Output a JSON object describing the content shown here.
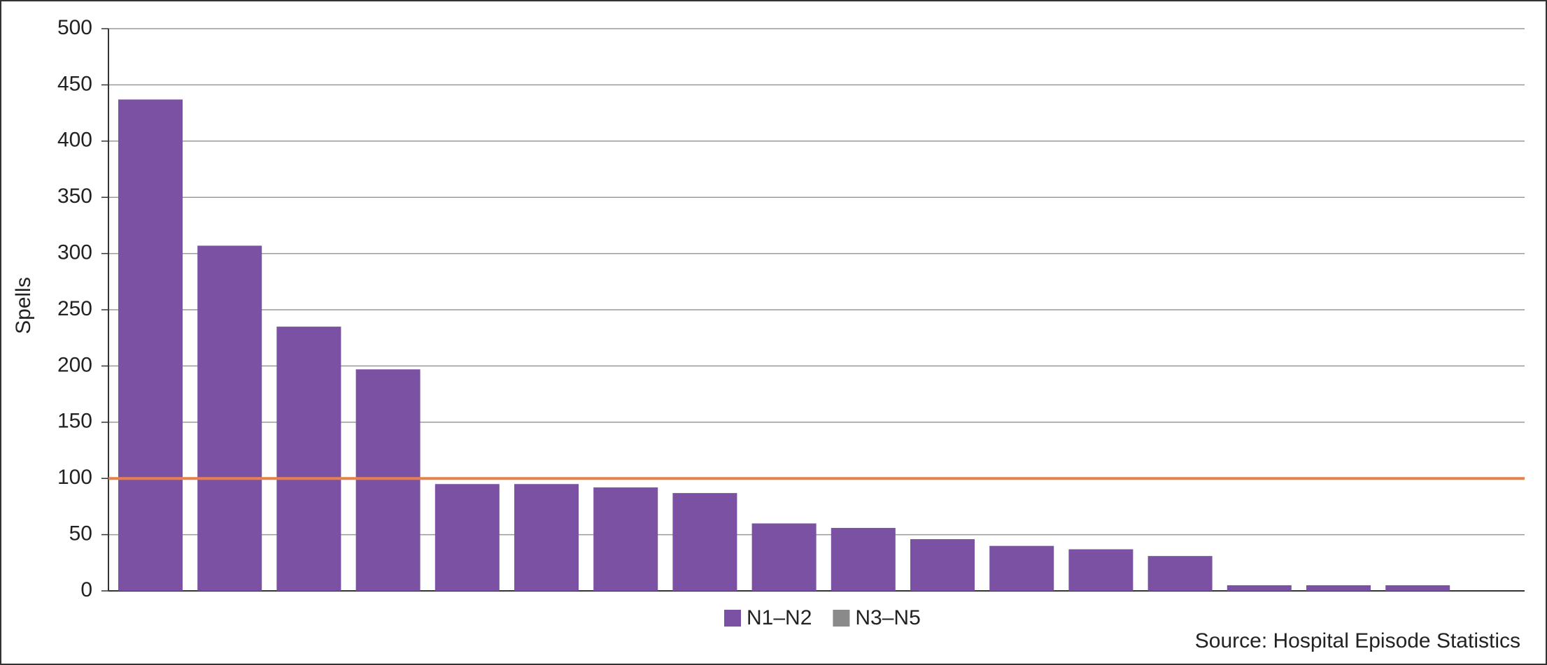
{
  "chart_data": {
    "type": "bar",
    "y_label": "Spells",
    "source": "Source: Hospital Episode Statistics",
    "categories": [
      null,
      null,
      null,
      null,
      null,
      null,
      null,
      null,
      null,
      null,
      null,
      null,
      null,
      null,
      null,
      null,
      null
    ],
    "series": [
      {
        "name": "N1–N2",
        "color": "#7b52a3",
        "values": [
          437,
          307,
          235,
          197,
          95,
          95,
          92,
          87,
          60,
          56,
          46,
          40,
          37,
          31,
          5,
          5,
          5
        ]
      },
      {
        "name": "N3–N5",
        "color": "#8a8a8a",
        "values": [
          null,
          null,
          null,
          null,
          null,
          null,
          null,
          null,
          null,
          null,
          null,
          null,
          null,
          null,
          null,
          null,
          null
        ]
      }
    ],
    "reference_line": {
      "value": 100,
      "color": "#e8804a"
    },
    "ylim": [
      0,
      500
    ],
    "yticks": [
      0,
      50,
      100,
      150,
      200,
      250,
      300,
      350,
      400,
      450,
      500
    ],
    "grid": true
  }
}
